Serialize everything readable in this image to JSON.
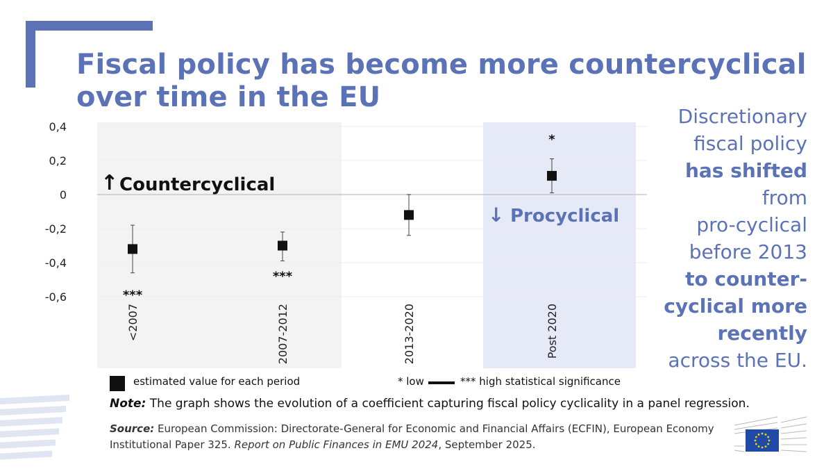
{
  "title": "Fiscal policy has become more countercyclical over time in the EU",
  "side_text": {
    "l1": "Discretionary",
    "l2": "fiscal policy",
    "l3": "has shifted",
    "l4": "from",
    "l5": "pro-cyclical",
    "l6": "before 2013",
    "l7": "to counter-",
    "l8": "cyclical more",
    "l9": "recently",
    "l10": "across the EU."
  },
  "annotations": {
    "countercyclical": "Countercyclical",
    "procyclical": "Procyclical"
  },
  "legend": {
    "marker": "estimated value for each period",
    "sig_low": "* low",
    "sig_high": "*** high statistical significance"
  },
  "note": {
    "label": "Note:",
    "text": " The graph shows the evolution of a coefficient capturing fiscal policy cyclicality in a panel regression."
  },
  "source": {
    "label": "Source:",
    "text1": " European Commission: Directorate-General for Economic and Financial Affairs (ECFIN), European Economy Institutional Paper 325. ",
    "italic": "Report on Public Finances in EMU 2024",
    "text2": ", September 2025."
  },
  "chart_data": {
    "type": "scatter",
    "categories": [
      "<2007",
      "2007-2012",
      "2013-2020",
      "Post 2020"
    ],
    "values": [
      -0.32,
      -0.3,
      -0.12,
      0.11
    ],
    "error_low": [
      -0.46,
      -0.39,
      -0.24,
      0.01
    ],
    "error_high": [
      -0.18,
      -0.22,
      0.0,
      0.21
    ],
    "significance": [
      "***",
      "***",
      "",
      "*"
    ],
    "ylim": [
      -0.6,
      0.4
    ],
    "yticks": [
      0.4,
      0.2,
      0,
      -0.2,
      -0.4,
      -0.6
    ],
    "ytick_labels": [
      "0,4",
      "0,2",
      "0",
      "-0,2",
      "-0,4",
      "-0,6"
    ],
    "shaded_periods": [
      {
        "category": "<2007",
        "color": "#f3f3f3"
      },
      {
        "category": "2007-2012",
        "color": "#f3f3f3"
      },
      {
        "category": "Post 2020",
        "color": "#e6e9f6"
      }
    ]
  }
}
